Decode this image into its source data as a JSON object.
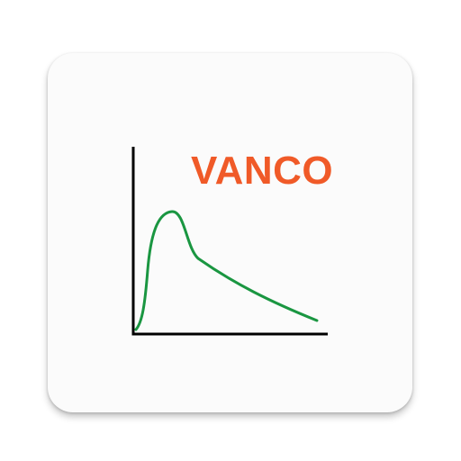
{
  "app": {
    "title": "VANCO"
  },
  "colors": {
    "card_background": "#fbfbfb",
    "title": "#f05a28",
    "axes": "#000000",
    "curve": "#1a9641"
  },
  "icon": {
    "graphic": "concentration-time-curve-icon"
  }
}
